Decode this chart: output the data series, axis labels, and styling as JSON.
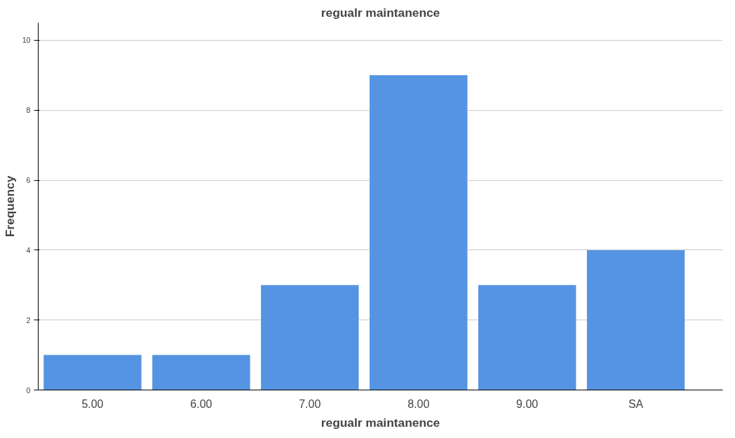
{
  "chart_data": {
    "type": "bar",
    "title": "regualr maintanence",
    "xlabel": "regualr maintanence",
    "ylabel": "Frequency",
    "categories": [
      "5.00",
      "6.00",
      "7.00",
      "8.00",
      "9.00",
      "SA"
    ],
    "values": [
      1,
      1,
      3,
      9,
      3,
      4
    ],
    "color": "#5594e2",
    "ylim": [
      0,
      10.5
    ],
    "yticks": [
      0,
      2,
      4,
      6,
      8,
      10
    ],
    "grid": "y"
  }
}
